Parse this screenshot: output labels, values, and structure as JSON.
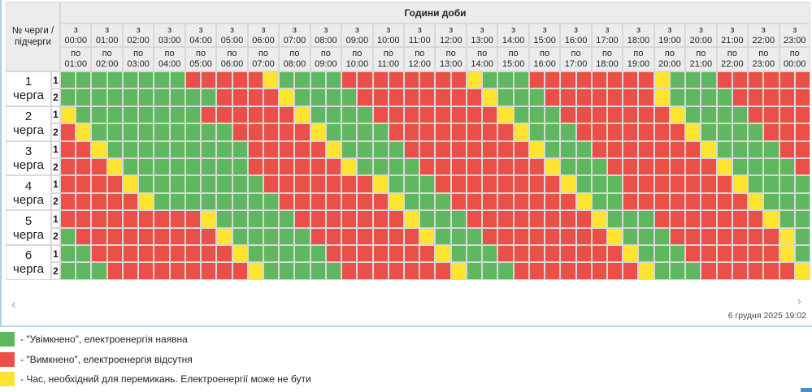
{
  "colors": {
    "on": "#5fb75f",
    "off": "#ea4f48",
    "switch": "#fee32f",
    "header_bg": "#ececec",
    "gridline": "#d8d8d8",
    "card_border": "#abcfe6",
    "bluebar": "#5289c7"
  },
  "table": {
    "top_header": "Години доби",
    "corner_label_line1": "№ черги /",
    "corner_label_line2": "підчерги",
    "from_prefix": "з",
    "to_prefix": "по",
    "hours": [
      {
        "from": "00:00",
        "to": "01:00"
      },
      {
        "from": "01:00",
        "to": "02:00"
      },
      {
        "from": "02:00",
        "to": "03:00"
      },
      {
        "from": "03:00",
        "to": "04:00"
      },
      {
        "from": "04:00",
        "to": "05:00"
      },
      {
        "from": "05:00",
        "to": "06:00"
      },
      {
        "from": "06:00",
        "to": "07:00"
      },
      {
        "from": "07:00",
        "to": "08:00"
      },
      {
        "from": "08:00",
        "to": "09:00"
      },
      {
        "from": "09:00",
        "to": "10:00"
      },
      {
        "from": "10:00",
        "to": "11:00"
      },
      {
        "from": "11:00",
        "to": "12:00"
      },
      {
        "from": "12:00",
        "to": "13:00"
      },
      {
        "from": "13:00",
        "to": "14:00"
      },
      {
        "from": "14:00",
        "to": "15:00"
      },
      {
        "from": "15:00",
        "to": "16:00"
      },
      {
        "from": "16:00",
        "to": "17:00"
      },
      {
        "from": "17:00",
        "to": "18:00"
      },
      {
        "from": "18:00",
        "to": "19:00"
      },
      {
        "from": "19:00",
        "to": "20:00"
      },
      {
        "from": "20:00",
        "to": "21:00"
      },
      {
        "from": "21:00",
        "to": "22:00"
      },
      {
        "from": "22:00",
        "to": "23:00"
      },
      {
        "from": "23:00",
        "to": "00:00"
      }
    ],
    "queue_word": "черга",
    "queues": [
      {
        "num": "1",
        "subqueues": [
          {
            "label": "1",
            "cells": "GGGGGGGGRRRRRYGGGGRRRRRRRRYGGGRRRRRRRRYGGGRRRRRR"
          },
          {
            "label": "2",
            "cells": "GGGGGGGGGGRRRRYGGGGRRRRRRRRYGGGRRRRRRRYGGGGRRRRR"
          }
        ]
      },
      {
        "num": "2",
        "subqueues": [
          {
            "label": "1",
            "cells": "YGGGGGGGGRRRRRRYGGGGRRRRRRRRYGGGRRRRRRRYGGGGRRRR"
          },
          {
            "label": "2",
            "cells": "RYGGGGGGGGGRRRRRYGGGGRRRRRRRRYGGGRRRRRRRYGGGGRRR"
          }
        ]
      },
      {
        "num": "3",
        "subqueues": [
          {
            "label": "1",
            "cells": "RRYGGGGGGGGGRRRRRYGGGGRRRRRRRRYGGGRRRRRRRYGGGGRR"
          },
          {
            "label": "2",
            "cells": "RRRYGGGGGGGGRRRRRRYGGGGRRRRRRRRYGGGRRRRRRRYGGGGR"
          }
        ]
      },
      {
        "num": "4",
        "subqueues": [
          {
            "label": "1",
            "cells": "RRRRYGGGGGGGGRRRRRRRYGGGRRRRRRRRYGGGRRRRRRRYGGGG"
          },
          {
            "label": "2",
            "cells": "RRRRRYGGGGGGGGRRRRRRRYGGGRRRRRRRRYGGRRRRRRRRYGGG"
          }
        ]
      },
      {
        "num": "5",
        "subqueues": [
          {
            "label": "1",
            "cells": "RRRRRRRRRYGGGGGRRRRRRRYGGGRRRRRRRRYGGGRRRRRRRYGG"
          },
          {
            "label": "2",
            "cells": "GRRRRRRRRRYGGGGGRRRRRRRYGGGRRRRRRRRYGGGRRRRRRRYG"
          }
        ]
      },
      {
        "num": "6",
        "subqueues": [
          {
            "label": "1",
            "cells": "GGRRRRRRRRRYGGGGGRRRRRRRYGGGRRRRRRRRYGGGRRRRRRYG"
          },
          {
            "label": "2",
            "cells": "GGGRRRRRRRRRYGGGGGRRRRRRRYGGGRRRRRRRRYGGGRRRRRRY"
          }
        ]
      }
    ]
  },
  "legend": [
    {
      "key": "on",
      "label": "- \"Увімкнено\", електроенергія наявна"
    },
    {
      "key": "off",
      "label": "- \"Вимкнено\", електроенергія відсутня"
    },
    {
      "key": "switch",
      "label": "- Час, необхідний для перемикань. Електроенергії може не бути"
    }
  ],
  "footer": {
    "prev_arrow": "‹",
    "next_arrow": "›",
    "timestamp": "6 грудня 2025 19:02"
  }
}
